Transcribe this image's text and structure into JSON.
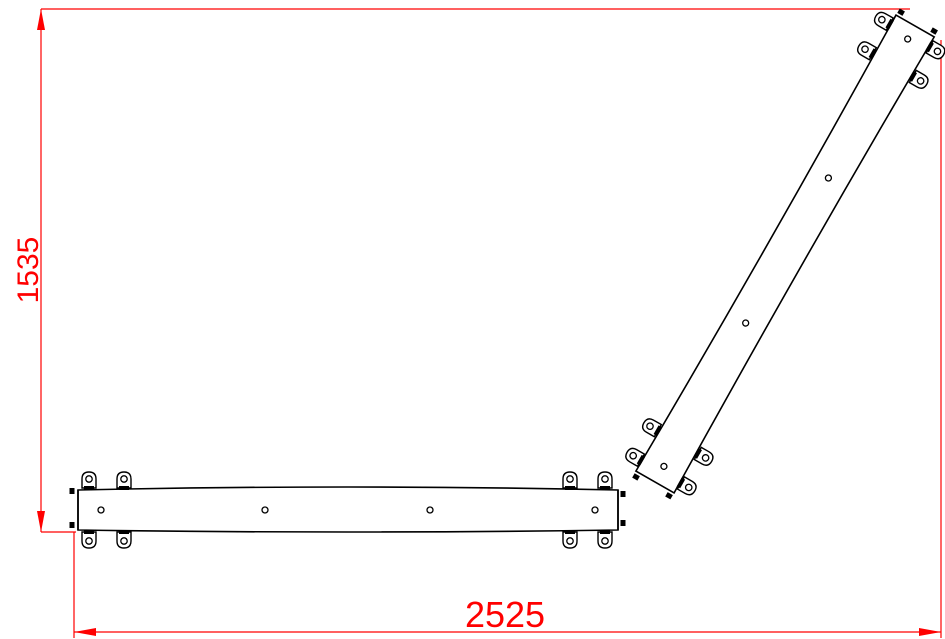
{
  "dimensions": {
    "width_label": "2525",
    "height_label": "1535"
  },
  "colors": {
    "dimension": "#ff0000",
    "outline": "#000000",
    "background": "#ffffff"
  },
  "parts": {
    "beam_count": 2,
    "beam_holes_per_part": 4
  }
}
